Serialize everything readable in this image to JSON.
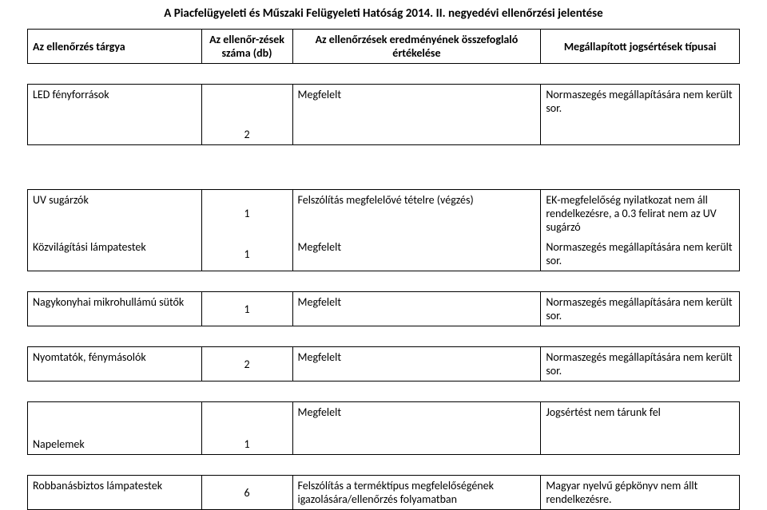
{
  "title": "A Piacfelügyeleti és Műszaki Felügyeleti Hatóság 2014. II. negyedévi ellenőrzési jelentése",
  "headers": {
    "c1": "Az ellenőrzés tárgya",
    "c2": "Az ellenőr-zések száma (db)",
    "c3": "Az ellenőrzések eredményének összefoglaló értékelése",
    "c4": "Megállapított jogsértések típusai"
  },
  "rows": [
    {
      "subj": "LED fényforrások",
      "count": "2",
      "result": "Megfelelt",
      "viol": "Normaszegés megállapítására nem került sor."
    },
    {
      "subj": "UV sugárzók",
      "count": "1",
      "result": "Felszólítás megfelelővé tételre (végzés)",
      "viol": "EK-megfelelőség nyilatkozat nem áll rendelkezésre, a 0.3 felirat nem az UV sugárzó"
    },
    {
      "subj": "Közvilágítási lámpatestek",
      "count": "1",
      "result": "Megfelelt",
      "viol": "Normaszegés megállapítására nem került sor."
    },
    {
      "subj": "Nagykonyhai mikrohullámú sütők",
      "count": "1",
      "result": "Megfelelt",
      "viol": "Normaszegés megállapítására nem került sor."
    },
    {
      "subj": "Nyomtatók, fénymásolók",
      "count": "2",
      "result": "Megfelelt",
      "viol": "Normaszegés megállapítására nem került sor."
    },
    {
      "subj": "Napelemek",
      "count": "1",
      "result": "Megfelelt",
      "viol": "Jogsértést nem tárunk fel"
    },
    {
      "subj": "Robbanásbiztos lámpatestek",
      "count": "6",
      "result": "Felszólítás a terméktípus megfelelőségének igazolására/ellenőrzés folyamatban",
      "viol": "Magyar nyelvű gépkönyv nem állt rendelkezésre."
    }
  ]
}
